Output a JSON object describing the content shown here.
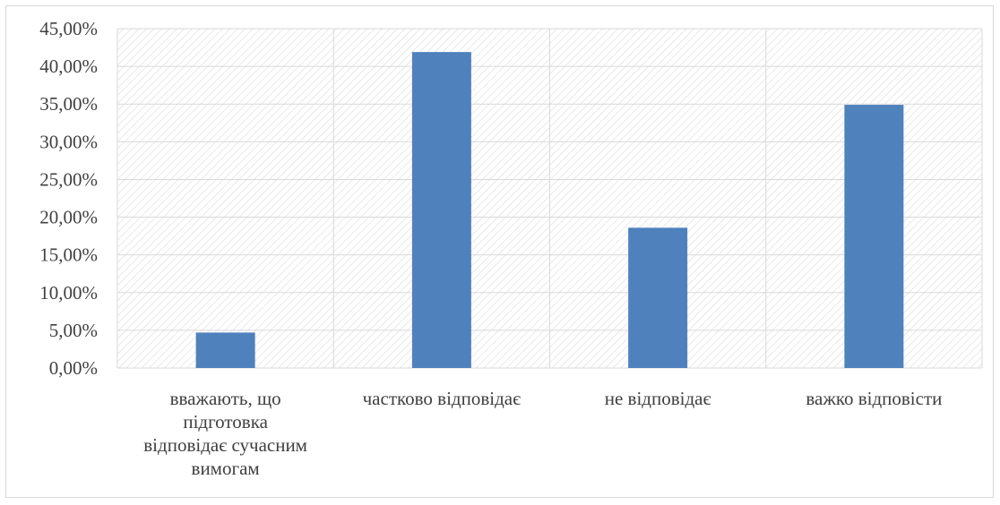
{
  "chart_data": {
    "type": "bar",
    "categories": [
      [
        "вважають, що",
        "підготовка",
        "відповідає сучасним",
        "вимогам"
      ],
      [
        "частково відповідає"
      ],
      [
        "не відповідає"
      ],
      [
        "важко відповісти"
      ]
    ],
    "values": [
      4.7,
      41.9,
      18.6,
      34.9
    ],
    "ylim": [
      0,
      45
    ],
    "ytick_step": 5,
    "ytick_labels": [
      "0,00%",
      "5,00%",
      "10,00%",
      "15,00%",
      "20,00%",
      "25,00%",
      "30,00%",
      "35,00%",
      "40,00%",
      "45,00%"
    ],
    "title": "",
    "xlabel": "",
    "ylabel": "",
    "grid": true,
    "plot_pattern": "diagonal-hatch",
    "colors": {
      "bar": "#4f81bd",
      "grid": "#d9d9d9",
      "hatch": "#d9d9d9",
      "text": "#404040"
    }
  }
}
